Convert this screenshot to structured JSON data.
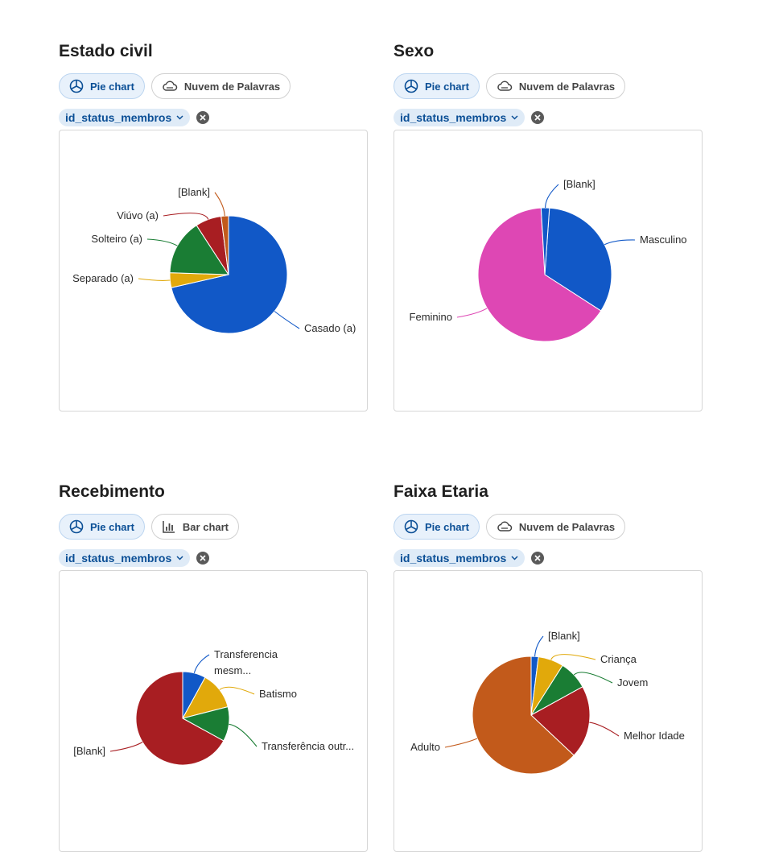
{
  "panels": [
    {
      "id": "estado-civil",
      "title": "Estado civil",
      "tabs": [
        {
          "label": "Pie chart",
          "icon": "pie-chart-icon",
          "active": true
        },
        {
          "label": "Nuvem de Palavras",
          "icon": "cloud-icon",
          "active": false
        }
      ],
      "filter": "id_status_membros"
    },
    {
      "id": "sexo",
      "title": "Sexo",
      "tabs": [
        {
          "label": "Pie chart",
          "icon": "pie-chart-icon",
          "active": true
        },
        {
          "label": "Nuvem de Palavras",
          "icon": "cloud-icon",
          "active": false
        }
      ],
      "filter": "id_status_membros"
    },
    {
      "id": "recebimento",
      "title": "Recebimento",
      "tabs": [
        {
          "label": "Pie chart",
          "icon": "pie-chart-icon",
          "active": true
        },
        {
          "label": "Bar chart",
          "icon": "bar-chart-icon",
          "active": false
        }
      ],
      "filter": "id_status_membros"
    },
    {
      "id": "faixa-etaria",
      "title": "Faixa Etaria",
      "tabs": [
        {
          "label": "Pie chart",
          "icon": "pie-chart-icon",
          "active": true
        },
        {
          "label": "Nuvem de Palavras",
          "icon": "cloud-icon",
          "active": false
        }
      ],
      "filter": "id_status_membros"
    }
  ],
  "chart_data": [
    {
      "type": "pie",
      "categories": [
        "Casado (a)",
        "Separado (a)",
        "Solteiro (a)",
        "Viúvo (a)",
        "[Blank]"
      ],
      "values": [
        70,
        4,
        15,
        7,
        2
      ],
      "colors": [
        "#1158c7",
        "#e1a90b",
        "#1a7d34",
        "#a81e22",
        "#c25a1b"
      ]
    },
    {
      "type": "pie",
      "categories": [
        "Masculino",
        "Feminino",
        "[Blank]"
      ],
      "values": [
        33,
        65,
        2
      ],
      "colors": [
        "#1158c7",
        "#de47b4",
        "#1158c7"
      ]
    },
    {
      "type": "pie",
      "categories": [
        "Transferencia mesm...",
        "Batismo",
        "Transferência outr...",
        "[Blank]"
      ],
      "values": [
        8,
        13,
        12,
        67
      ],
      "colors": [
        "#1158c7",
        "#e1a90b",
        "#1a7d34",
        "#a81e22"
      ]
    },
    {
      "type": "pie",
      "categories": [
        "[Blank]",
        "Criança",
        "Jovem",
        "Melhor Idade",
        "Adulto"
      ],
      "values": [
        2,
        7,
        8,
        20,
        63
      ],
      "colors": [
        "#1158c7",
        "#e1a90b",
        "#1a7d34",
        "#a81e22",
        "#c25a1b"
      ]
    }
  ]
}
